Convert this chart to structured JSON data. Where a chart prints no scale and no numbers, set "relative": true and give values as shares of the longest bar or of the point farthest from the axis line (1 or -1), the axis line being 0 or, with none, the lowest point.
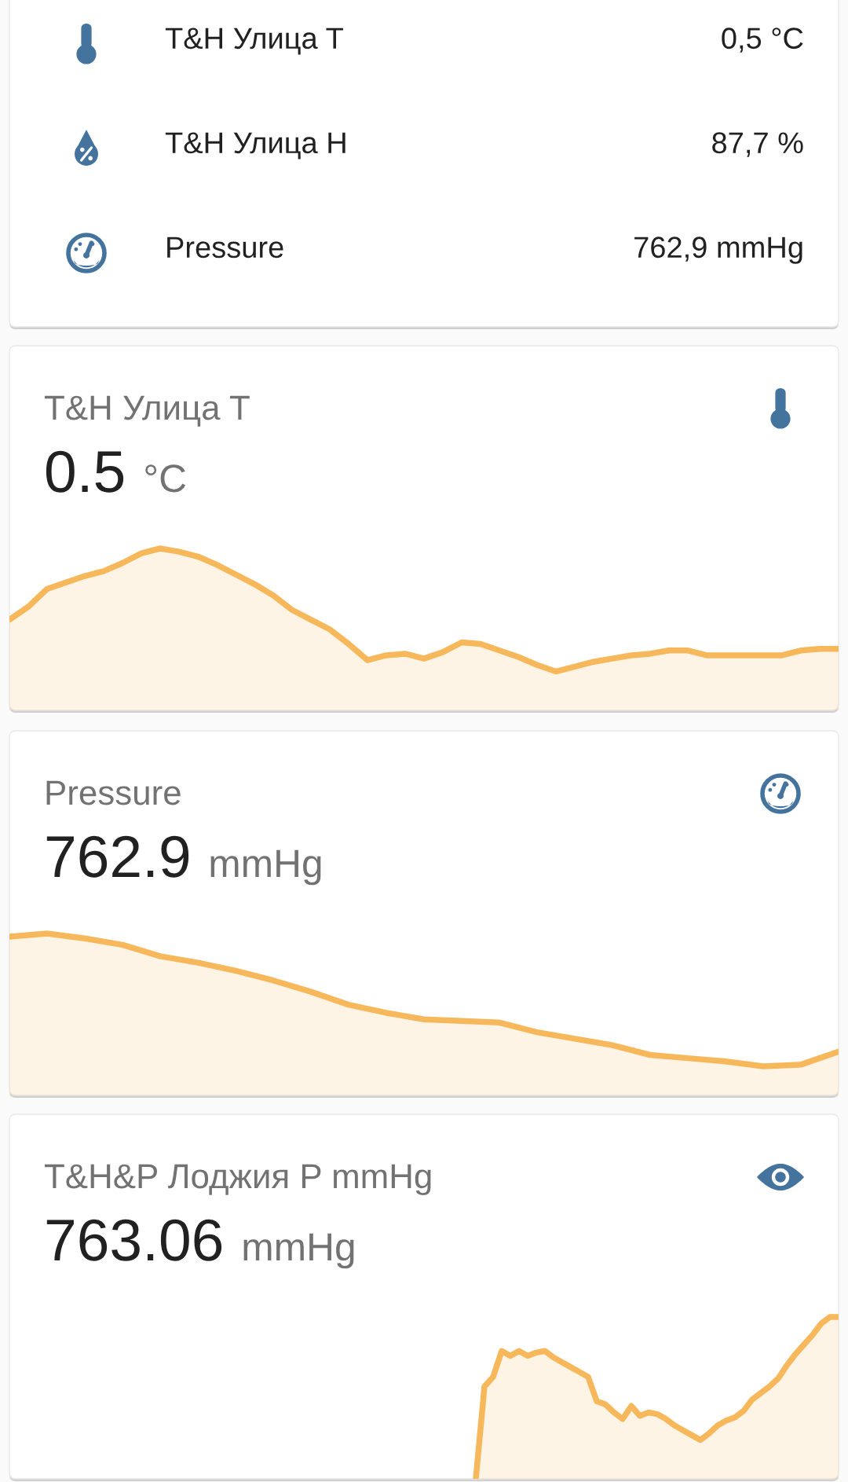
{
  "chart_data": [
    {
      "type": "other",
      "categories": [
        "T&H Улица T",
        "T&H Улица H",
        "Pressure"
      ],
      "value_labels": [
        "0,5 °C",
        "87,7 %",
        "762,9 mmHg"
      ]
    },
    {
      "type": "area",
      "title": "T&H Улица T",
      "subtitle": "0.5",
      "annotations": [
        "°C"
      ],
      "relative": true,
      "color": "#f7b85c",
      "categories": [
        null,
        null,
        null,
        null,
        null,
        null,
        null,
        null,
        null,
        null,
        null,
        null,
        null,
        null,
        null,
        null,
        null,
        null,
        null,
        null,
        null,
        null,
        null,
        null,
        null,
        null,
        null,
        null,
        null,
        null,
        null,
        null,
        null,
        null,
        null,
        null,
        null,
        null,
        null,
        null,
        null,
        null,
        null,
        null,
        null
      ],
      "values": [
        0.56,
        0.64,
        0.75,
        0.79,
        0.83,
        0.86,
        0.91,
        0.97,
        1.0,
        0.98,
        0.95,
        0.9,
        0.84,
        0.78,
        0.71,
        0.62,
        0.56,
        0.5,
        0.41,
        0.31,
        0.34,
        0.35,
        0.32,
        0.36,
        0.42,
        0.41,
        0.37,
        0.33,
        0.28,
        0.24,
        0.27,
        0.3,
        0.32,
        0.34,
        0.35,
        0.37,
        0.37,
        0.34,
        0.34,
        0.34,
        0.34,
        0.34,
        0.37,
        0.38,
        0.38
      ]
    },
    {
      "type": "area",
      "title": "Pressure",
      "subtitle": "762.9",
      "annotations": [
        "mmHg"
      ],
      "relative": true,
      "color": "#f7b85c",
      "categories": [
        null,
        null,
        null,
        null,
        null,
        null,
        null,
        null,
        null,
        null,
        null,
        null,
        null,
        null,
        null,
        null,
        null,
        null,
        null,
        null,
        null,
        null,
        null
      ],
      "values": [
        0.98,
        1.0,
        0.97,
        0.93,
        0.86,
        0.82,
        0.77,
        0.71,
        0.64,
        0.56,
        0.51,
        0.47,
        0.46,
        0.45,
        0.39,
        0.35,
        0.31,
        0.25,
        0.23,
        0.21,
        0.18,
        0.19,
        0.27
      ]
    },
    {
      "type": "area",
      "title": "T&H&P Лоджия P mmHg",
      "subtitle": "763.06",
      "annotations": [
        "mmHg"
      ],
      "relative": true,
      "color": "#f7b85c",
      "categories": [
        null,
        null,
        null,
        null,
        null,
        null,
        null,
        null,
        null,
        null,
        null,
        null,
        null,
        null,
        null,
        null,
        null,
        null,
        null,
        null,
        null,
        null,
        null,
        null,
        null,
        null,
        null,
        null,
        null,
        null,
        null,
        null,
        null,
        null,
        null,
        null,
        null,
        null,
        null,
        null,
        null,
        null,
        null,
        null,
        null,
        null,
        null,
        null,
        null,
        null,
        null,
        null,
        null,
        null,
        null,
        null,
        null,
        null,
        null,
        null,
        null,
        null,
        null,
        null,
        null,
        null,
        null,
        null,
        null,
        null,
        null,
        null,
        null,
        null,
        null,
        null,
        null,
        null,
        null,
        null,
        null,
        null,
        null,
        null,
        null,
        null,
        null,
        null,
        null,
        null,
        null,
        null,
        null,
        null,
        null,
        null,
        null
      ],
      "values": [
        null,
        null,
        null,
        null,
        null,
        null,
        null,
        null,
        null,
        null,
        null,
        null,
        null,
        null,
        null,
        null,
        null,
        null,
        null,
        null,
        null,
        null,
        null,
        null,
        null,
        null,
        null,
        null,
        null,
        null,
        null,
        null,
        null,
        null,
        null,
        null,
        null,
        null,
        null,
        null,
        null,
        null,
        null,
        null,
        null,
        null,
        null,
        null,
        null,
        null,
        null,
        null,
        null,
        null,
        0.0,
        0.57,
        0.63,
        0.79,
        0.76,
        0.79,
        0.76,
        0.78,
        0.79,
        0.75,
        0.72,
        0.69,
        0.66,
        0.63,
        0.48,
        0.46,
        0.41,
        0.37,
        0.45,
        0.39,
        0.41,
        0.4,
        0.37,
        0.33,
        0.3,
        0.27,
        0.24,
        0.28,
        0.33,
        0.36,
        0.38,
        0.42,
        0.49,
        0.53,
        0.57,
        0.62,
        0.7,
        0.77,
        0.83,
        0.89,
        0.96,
        1.0,
        1.0
      ]
    }
  ]
}
